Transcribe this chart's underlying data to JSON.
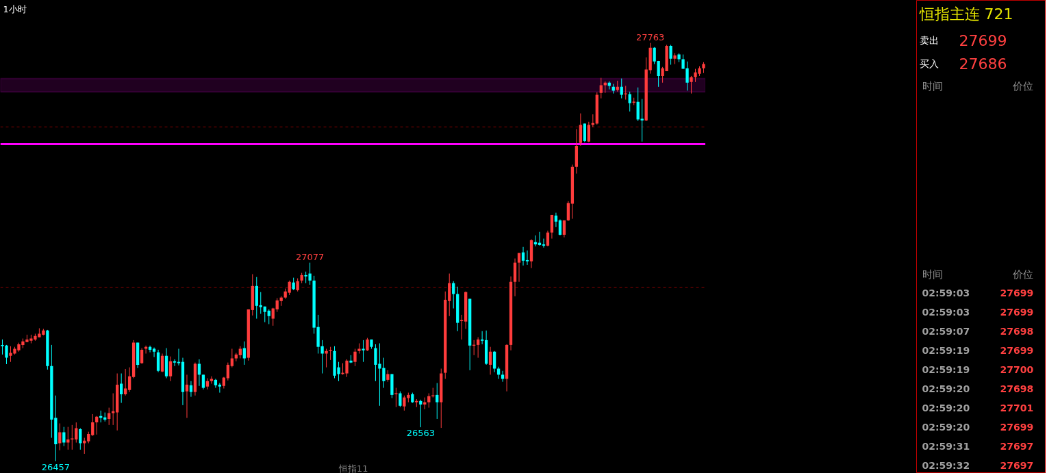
{
  "chart_data": {
    "type": "candlestick",
    "title": "恒指主连 721",
    "categories": [
      null,
      null,
      null,
      null,
      null,
      null,
      null,
      null,
      null,
      null,
      null,
      null,
      null,
      null,
      null,
      null,
      null,
      null,
      null,
      null,
      null,
      null,
      null,
      null,
      null,
      null,
      null,
      null,
      null,
      null,
      null,
      null,
      null,
      null,
      null,
      null,
      null,
      null,
      null,
      null,
      null,
      null,
      null,
      null,
      null,
      null,
      null,
      null,
      null,
      null,
      null,
      null,
      null,
      null,
      null,
      null,
      null,
      null,
      null,
      null,
      null,
      null,
      null,
      null,
      null,
      null,
      null,
      null,
      null,
      null,
      null,
      null,
      null,
      null,
      null,
      null,
      null,
      null,
      null,
      null,
      null,
      null,
      null,
      null,
      null,
      null,
      null,
      null,
      null,
      null,
      null,
      null,
      null,
      null,
      null,
      null,
      null,
      null,
      null,
      null,
      null,
      null,
      null,
      null,
      null,
      null,
      null,
      null,
      null,
      null,
      null,
      null,
      null,
      null,
      null,
      null,
      null,
      null,
      null,
      null,
      null,
      null,
      null,
      null,
      null,
      null,
      null,
      null,
      null,
      null,
      null,
      null,
      null,
      null,
      null,
      null,
      null,
      null,
      null,
      null,
      null,
      null,
      null,
      null,
      null,
      null,
      null,
      null,
      null,
      null,
      null,
      null,
      null,
      null,
      null,
      null,
      null,
      null,
      null,
      null,
      null,
      null,
      null,
      null,
      null,
      null,
      null,
      null,
      null,
      null,
      null,
      null
    ],
    "ohlc": [
      [
        26820,
        26837,
        26790,
        26816
      ],
      [
        26818,
        26820,
        26760,
        26780
      ],
      [
        26786,
        26816,
        26767,
        26795
      ],
      [
        26793,
        26814,
        26790,
        26808
      ],
      [
        26803,
        26827,
        26799,
        26822
      ],
      [
        26820,
        26840,
        26810,
        26831
      ],
      [
        26829,
        26852,
        26829,
        26837
      ],
      [
        26833,
        26852,
        26825,
        26840
      ],
      [
        26837,
        26855,
        26833,
        26848
      ],
      [
        26844,
        26872,
        26844,
        26855
      ],
      [
        26852,
        26870,
        26850,
        26865
      ],
      [
        26865,
        26867,
        26743,
        26754
      ],
      [
        26754,
        26820,
        26530,
        26587
      ],
      [
        26592,
        26662,
        26457,
        26510
      ],
      [
        26513,
        26575,
        26491,
        26547
      ],
      [
        26547,
        26564,
        26504,
        26515
      ],
      [
        26515,
        26564,
        26493,
        26525
      ],
      [
        26525,
        26570,
        26493,
        26528
      ],
      [
        26525,
        26578,
        26515,
        26560
      ],
      [
        26557,
        26560,
        26493,
        26513
      ],
      [
        26513,
        26530,
        26480,
        26521
      ],
      [
        26519,
        26549,
        26513,
        26542
      ],
      [
        26538,
        26604,
        26536,
        26578
      ],
      [
        26578,
        26598,
        26540,
        26596
      ],
      [
        26598,
        26615,
        26578,
        26592
      ],
      [
        26594,
        26609,
        26581,
        26587
      ],
      [
        26589,
        26624,
        26570,
        26607
      ],
      [
        26607,
        26669,
        26570,
        26613
      ],
      [
        26609,
        26731,
        26553,
        26696
      ],
      [
        26699,
        26731,
        26639,
        26666
      ],
      [
        26666,
        26745,
        26662,
        26684
      ],
      [
        26679,
        26750,
        26673,
        26722
      ],
      [
        26720,
        26835,
        26716,
        26827
      ],
      [
        26827,
        26827,
        26748,
        26758
      ],
      [
        26763,
        26810,
        26761,
        26805
      ],
      [
        26808,
        26818,
        26793,
        26814
      ],
      [
        26814,
        26818,
        26797,
        26805
      ],
      [
        26808,
        26812,
        26782,
        26799
      ],
      [
        26797,
        26805,
        26735,
        26739
      ],
      [
        26737,
        26793,
        26735,
        26786
      ],
      [
        26786,
        26810,
        26716,
        26722
      ],
      [
        26722,
        26784,
        26707,
        26769
      ],
      [
        26769,
        26775,
        26754,
        26765
      ],
      [
        26767,
        26808,
        26756,
        26763
      ],
      [
        26767,
        26780,
        26632,
        26673
      ],
      [
        26675,
        26727,
        26592,
        26696
      ],
      [
        26694,
        26707,
        26658,
        26673
      ],
      [
        26673,
        26765,
        26662,
        26761
      ],
      [
        26761,
        26775,
        26692,
        26727
      ],
      [
        26727,
        26727,
        26681,
        26686
      ],
      [
        26690,
        26716,
        26681,
        26707
      ],
      [
        26707,
        26722,
        26699,
        26714
      ],
      [
        26711,
        26714,
        26686,
        26694
      ],
      [
        26696,
        26701,
        26671,
        26690
      ],
      [
        26692,
        26720,
        26684,
        26718
      ],
      [
        26716,
        26765,
        26709,
        26758
      ],
      [
        26754,
        26808,
        26750,
        26778
      ],
      [
        26778,
        26795,
        26769,
        26790
      ],
      [
        26788,
        26816,
        26778,
        26808
      ],
      [
        26810,
        26831,
        26758,
        26778
      ],
      [
        26780,
        26931,
        26771,
        26931
      ],
      [
        26929,
        27041,
        26912,
        27004
      ],
      [
        27004,
        27032,
        26902,
        26942
      ],
      [
        26944,
        26985,
        26917,
        26938
      ],
      [
        26940,
        26940,
        26891,
        26923
      ],
      [
        26927,
        26931,
        26885,
        26910
      ],
      [
        26902,
        26936,
        26880,
        26934
      ],
      [
        26931,
        26966,
        26923,
        26959
      ],
      [
        26957,
        26972,
        26942,
        26968
      ],
      [
        26968,
        26996,
        26964,
        26987
      ],
      [
        26983,
        27021,
        26976,
        27017
      ],
      [
        27015,
        27030,
        26991,
        26994
      ],
      [
        26991,
        27028,
        26987,
        27019
      ],
      [
        27021,
        27045,
        27013,
        27038
      ],
      [
        27038,
        27049,
        27013,
        27034
      ],
      [
        27043,
        27077,
        27008,
        27021
      ],
      [
        27021,
        27036,
        26855,
        26874
      ],
      [
        26876,
        26914,
        26793,
        26814
      ],
      [
        26816,
        26835,
        26731,
        26793
      ],
      [
        26793,
        26808,
        26750,
        26801
      ],
      [
        26801,
        26814,
        26773,
        26803
      ],
      [
        26801,
        26816,
        26716,
        26724
      ],
      [
        26750,
        26767,
        26707,
        26729
      ],
      [
        26729,
        26763,
        26727,
        26733
      ],
      [
        26731,
        26775,
        26720,
        26771
      ],
      [
        26771,
        26788,
        26763,
        26765
      ],
      [
        26767,
        26808,
        26754,
        26799
      ],
      [
        26801,
        26825,
        26793,
        26808
      ],
      [
        26808,
        26835,
        26767,
        26803
      ],
      [
        26803,
        26842,
        26801,
        26837
      ],
      [
        26837,
        26837,
        26808,
        26814
      ],
      [
        26810,
        26822,
        26707,
        26758
      ],
      [
        26761,
        26825,
        26630,
        26746
      ],
      [
        26748,
        26780,
        26686,
        26707
      ],
      [
        26711,
        26741,
        26705,
        26729
      ],
      [
        26729,
        26729,
        26654,
        26664
      ],
      [
        26666,
        26686,
        26626,
        26669
      ],
      [
        26669,
        26675,
        26626,
        26630
      ],
      [
        26628,
        26662,
        26615,
        26656
      ],
      [
        26654,
        26671,
        26641,
        26664
      ],
      [
        26666,
        26671,
        26639,
        26641
      ],
      [
        26641,
        26651,
        26626,
        26645
      ],
      [
        26645,
        26649,
        26563,
        26634
      ],
      [
        26634,
        26656,
        26619,
        26641
      ],
      [
        26641,
        26669,
        26624,
        26660
      ],
      [
        26660,
        26686,
        26656,
        26662
      ],
      [
        26664,
        26701,
        26589,
        26641
      ],
      [
        26641,
        26746,
        26561,
        26731
      ],
      [
        26733,
        26987,
        26714,
        26961
      ],
      [
        26957,
        27043,
        26910,
        27013
      ],
      [
        27013,
        27019,
        26934,
        26979
      ],
      [
        26979,
        27002,
        26863,
        26889
      ],
      [
        26895,
        26914,
        26837,
        26897
      ],
      [
        26893,
        26987,
        26870,
        26985
      ],
      [
        26964,
        26964,
        26741,
        26818
      ],
      [
        26818,
        26835,
        26788,
        26820
      ],
      [
        26820,
        26844,
        26780,
        26837
      ],
      [
        26837,
        26863,
        26822,
        26833
      ],
      [
        26835,
        26865,
        26758,
        26761
      ],
      [
        26758,
        26814,
        26727,
        26799
      ],
      [
        26799,
        26801,
        26735,
        26746
      ],
      [
        26746,
        26752,
        26714,
        26727
      ],
      [
        26727,
        26739,
        26705,
        26714
      ],
      [
        26714,
        26822,
        26675,
        26820
      ],
      [
        26820,
        27034,
        26803,
        27017
      ],
      [
        27017,
        27090,
        26972,
        27077
      ],
      [
        27077,
        27107,
        27017,
        27107
      ],
      [
        27109,
        27126,
        27068,
        27083
      ],
      [
        27085,
        27115,
        27070,
        27081
      ],
      [
        27081,
        27150,
        27060,
        27147
      ],
      [
        27141,
        27162,
        27128,
        27134
      ],
      [
        27139,
        27173,
        27130,
        27132
      ],
      [
        27134,
        27152,
        27124,
        27130
      ],
      [
        27130,
        27177,
        27128,
        27171
      ],
      [
        27171,
        27226,
        27152,
        27226
      ],
      [
        27224,
        27233,
        27188,
        27205
      ],
      [
        27209,
        27212,
        27162,
        27164
      ],
      [
        27164,
        27209,
        27156,
        27209
      ],
      [
        27209,
        27269,
        27207,
        27263
      ],
      [
        27261,
        27383,
        27214,
        27376
      ],
      [
        27376,
        27494,
        27355,
        27442
      ],
      [
        27451,
        27543,
        27442,
        27507
      ],
      [
        27511,
        27511,
        27453,
        27457
      ],
      [
        27455,
        27517,
        27453,
        27507
      ],
      [
        27507,
        27540,
        27500,
        27513
      ],
      [
        27511,
        27609,
        27508,
        27601
      ],
      [
        27607,
        27654,
        27590,
        27631
      ],
      [
        27631,
        27643,
        27607,
        27639
      ],
      [
        27639,
        27643,
        27618,
        27629
      ],
      [
        27626,
        27635,
        27605,
        27614
      ],
      [
        27616,
        27645,
        27611,
        27626
      ],
      [
        27626,
        27652,
        27590,
        27601
      ],
      [
        27603,
        27629,
        27586,
        27605
      ],
      [
        27603,
        27611,
        27549,
        27575
      ],
      [
        27577,
        27592,
        27569,
        27579
      ],
      [
        27579,
        27624,
        27519,
        27524
      ],
      [
        27526,
        27588,
        27455,
        27521
      ],
      [
        27521,
        27718,
        27519,
        27680
      ],
      [
        27678,
        27763,
        27667,
        27748
      ],
      [
        27748,
        27750,
        27697,
        27705
      ],
      [
        27707,
        27707,
        27626,
        27660
      ],
      [
        27660,
        27688,
        27639,
        27684
      ],
      [
        27675,
        27757,
        27675,
        27754
      ],
      [
        27754,
        27757,
        27695,
        27714
      ],
      [
        27714,
        27731,
        27697,
        27724
      ],
      [
        27727,
        27731,
        27703,
        27712
      ],
      [
        27712,
        27727,
        27682,
        27682
      ],
      [
        27684,
        27705,
        27614,
        27639
      ],
      [
        27641,
        27660,
        27605,
        27656
      ],
      [
        27656,
        27682,
        27641,
        27671
      ],
      [
        27667,
        27690,
        27660,
        27684
      ],
      [
        27684,
        27703,
        27669,
        27697
      ]
    ],
    "colors": [
      "#00ffff",
      "#00ffff",
      "#ff3c3c",
      "#ff3c3c",
      "#ff3c3c",
      "#ff3c3c",
      "#ff3c3c",
      "#ff3c3c",
      "#ff3c3c",
      "#ff3c3c",
      "#ff3c3c",
      "#00ffff",
      "#00ffff",
      "#00ffff",
      "#ff3c3c",
      "#00ffff",
      "#ff3c3c",
      "#ff3c3c",
      "#ff3c3c",
      "#00ffff",
      "#ff3c3c",
      "#ff3c3c",
      "#ff3c3c",
      "#ff3c3c",
      "#00ffff",
      "#00ffff",
      "#ff3c3c",
      "#ff3c3c",
      "#ff3c3c",
      "#00ffff",
      "#ff3c3c",
      "#ff3c3c",
      "#ff3c3c",
      "#00ffff",
      "#ff3c3c",
      "#ff3c3c",
      "#00ffff",
      "#00ffff",
      "#00ffff",
      "#ff3c3c",
      "#00ffff",
      "#ff3c3c",
      "#00ffff",
      "#00ffff",
      "#00ffff",
      "#ff3c3c",
      "#00ffff",
      "#ff3c3c",
      "#00ffff",
      "#00ffff",
      "#ff3c3c",
      "#ff3c3c",
      "#00ffff",
      "#00ffff",
      "#ff3c3c",
      "#ff3c3c",
      "#ff3c3c",
      "#ff3c3c",
      "#ff3c3c",
      "#00ffff",
      "#ff3c3c",
      "#ff3c3c",
      "#00ffff",
      "#00ffff",
      "#00ffff",
      "#00ffff",
      "#ff3c3c",
      "#ff3c3c",
      "#ff3c3c",
      "#ff3c3c",
      "#ff3c3c",
      "#00ffff",
      "#ff3c3c",
      "#ff3c3c",
      "#00ffff",
      "#00ffff",
      "#00ffff",
      "#00ffff",
      "#00ffff",
      "#ff3c3c",
      "#ff3c3c",
      "#00ffff",
      "#00ffff",
      "#ff3c3c",
      "#ff3c3c",
      "#00ffff",
      "#ff3c3c",
      "#ff3c3c",
      "#00ffff",
      "#ff3c3c",
      "#00ffff",
      "#00ffff",
      "#00ffff",
      "#00ffff",
      "#ff3c3c",
      "#00ffff",
      "#ff3c3c",
      "#00ffff",
      "#ff3c3c",
      "#ff3c3c",
      "#00ffff",
      "#ff3c3c",
      "#00ffff",
      "#ff3c3c",
      "#ff3c3c",
      "#ff3c3c",
      "#00ffff",
      "#ff3c3c",
      "#ff3c3c",
      "#ff3c3c",
      "#00ffff",
      "#00ffff",
      "#ff3c3c",
      "#ff3c3c",
      "#00ffff",
      "#ff3c3c",
      "#ff3c3c",
      "#00ffff",
      "#00ffff",
      "#ff3c3c",
      "#00ffff",
      "#00ffff",
      "#00ffff",
      "#ff3c3c",
      "#ff3c3c",
      "#ff3c3c",
      "#ff3c3c",
      "#00ffff",
      "#00ffff",
      "#ff3c3c",
      "#00ffff",
      "#00ffff",
      "#00ffff",
      "#ff3c3c",
      "#ff3c3c",
      "#00ffff",
      "#00ffff",
      "#ff3c3c",
      "#ff3c3c",
      "#ff3c3c",
      "#ff3c3c",
      "#ff3c3c",
      "#00ffff",
      "#ff3c3c",
      "#ff3c3c",
      "#ff3c3c",
      "#ff3c3c",
      "#ff3c3c",
      "#00ffff",
      "#00ffff",
      "#ff3c3c",
      "#00ffff",
      "#ff3c3c",
      "#00ffff",
      "#ff3c3c",
      "#00ffff",
      "#00ffff",
      "#ff3c3c",
      "#ff3c3c",
      "#00ffff",
      "#00ffff",
      "#ff3c3c",
      "#ff3c3c",
      "#00ffff",
      "#ff3c3c",
      "#00ffff",
      "#00ffff",
      "#00ffff",
      "#ff3c3c",
      "#ff3c3c",
      "#ff3c3c",
      "#ff3c3c"
    ],
    "ylim": [
      26419,
      27896
    ],
    "yticks": [
      {
        "value": 27000,
        "label": null
      },
      {
        "value": 27500,
        "label": null
      }
    ],
    "grid": "y",
    "tick_labels": false,
    "ref_lines": [
      {
        "axis": "y",
        "value": 27447,
        "color": "#ff00ff"
      }
    ],
    "bands": [
      {
        "axis": "y",
        "from": 27610,
        "to": 27652,
        "color": "#800080"
      }
    ],
    "annotations": [
      "1小时",
      "恒指11",
      {
        "text": "27763",
        "y": 27763
      },
      {
        "text": "27077",
        "y": 27077
      },
      {
        "text": "26563",
        "y": 26563
      },
      {
        "text": "26457",
        "y": 26457
      },
      "卖出",
      "27699",
      "买入",
      "27686",
      "时间",
      "价位",
      "时间",
      "价位",
      "02:59:03",
      "27699",
      "02:59:03",
      "27699",
      "02:59:07",
      "27698",
      "02:59:19",
      "27699",
      "02:59:19",
      "27700",
      "02:59:20",
      "27698",
      "02:59:20",
      "27701",
      "02:59:20",
      "27699",
      "02:59:31",
      "27697",
      "02:59:32",
      "27697"
    ]
  }
}
